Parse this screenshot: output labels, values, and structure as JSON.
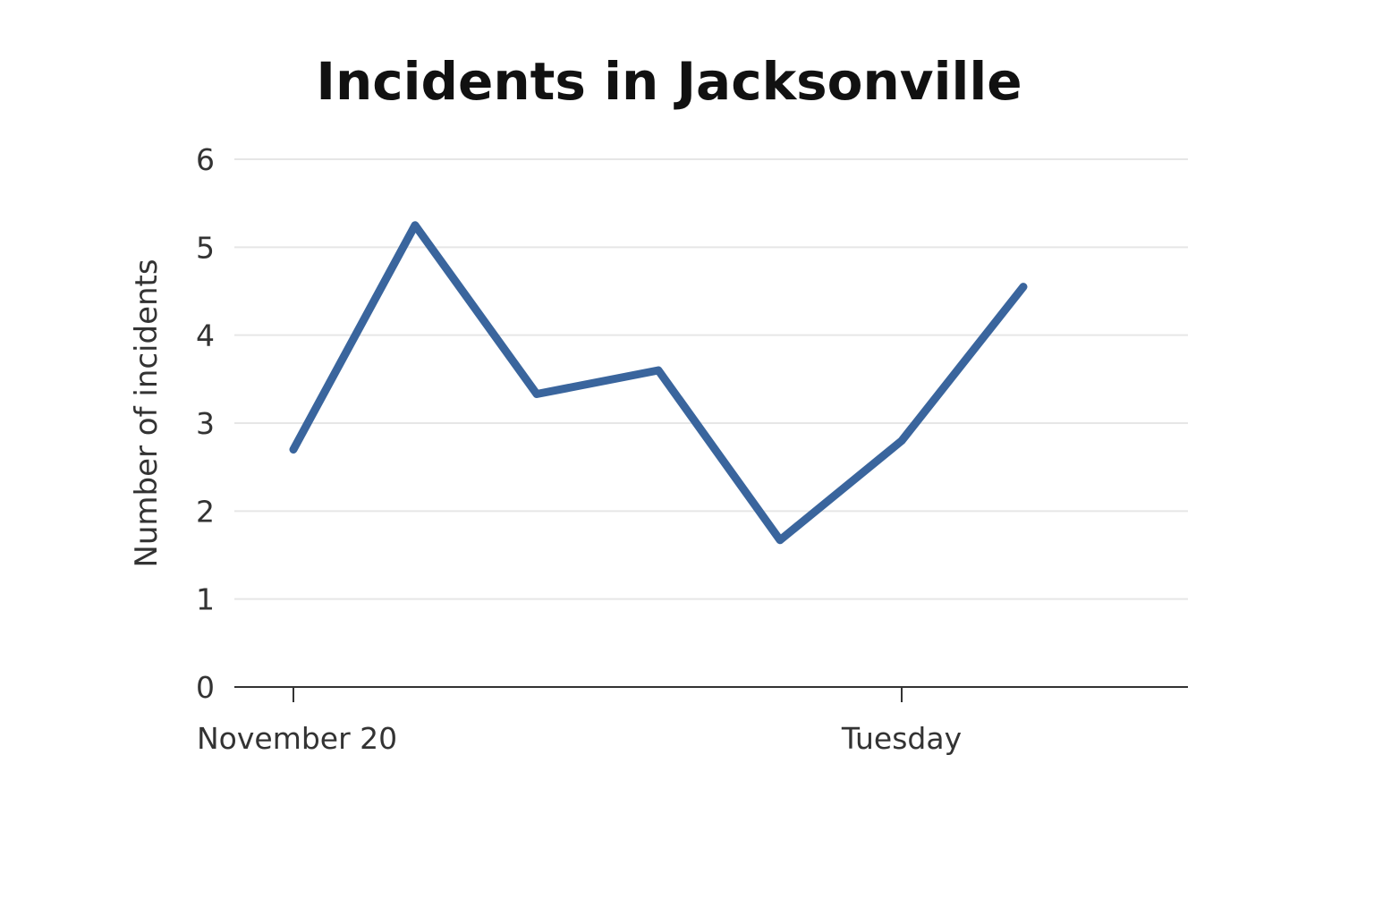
{
  "chart_data": {
    "type": "line",
    "title": "Incidents in Jacksonville",
    "xlabel": "",
    "ylabel": "Number of incidents",
    "ylim": [
      0,
      6
    ],
    "yticks": [
      "0",
      "1",
      "2",
      "3",
      "4",
      "5",
      "6"
    ],
    "xticks": [
      {
        "index": 0,
        "label": "November 20"
      },
      {
        "index": 5,
        "label": "Tuesday"
      }
    ],
    "grid": true,
    "legend": "none",
    "series": [
      {
        "name": "Incidents",
        "color": "#3a659d",
        "x": [
          0,
          1,
          2,
          3,
          4,
          5,
          6
        ],
        "values": [
          2.7,
          5.25,
          3.33,
          3.6,
          1.67,
          2.8,
          4.55
        ]
      }
    ]
  }
}
